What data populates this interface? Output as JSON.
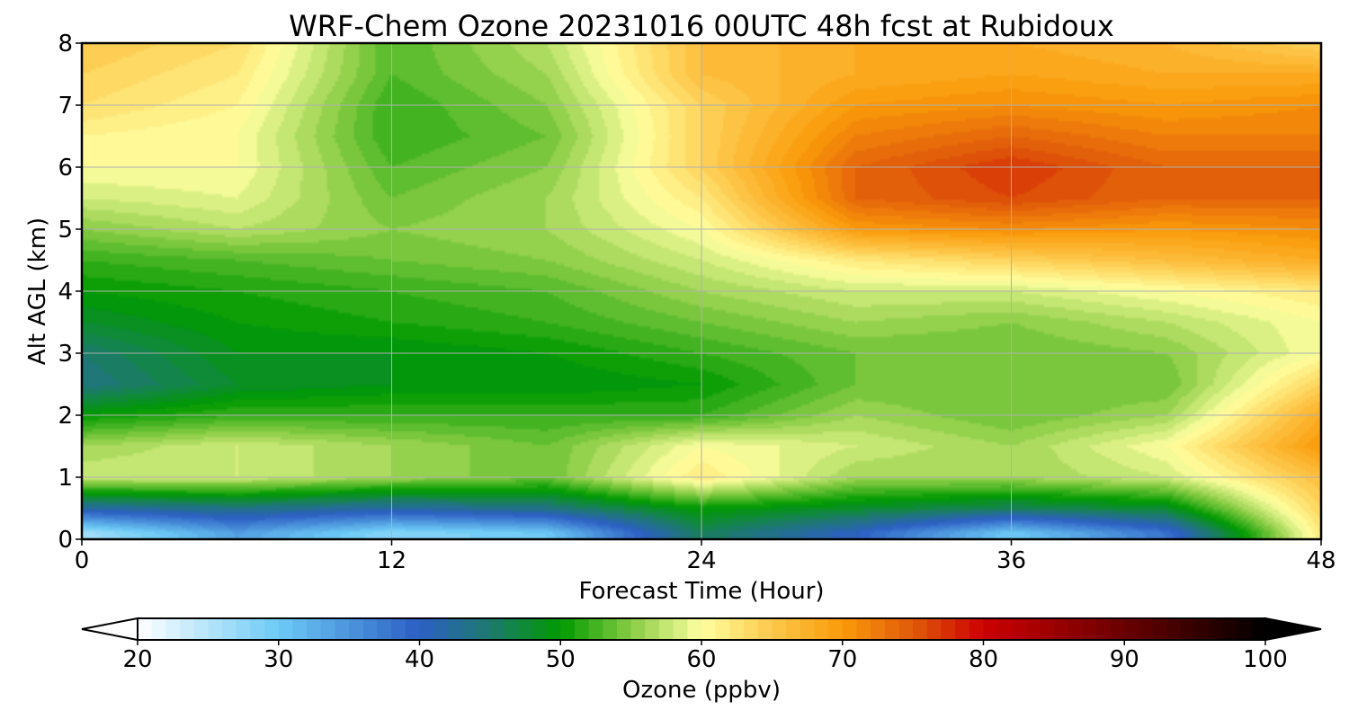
{
  "chart_data": {
    "type": "heatmap",
    "title": "WRF-Chem Ozone  20231016 00UTC 48h fcst at Rubidoux",
    "xlabel": "Forecast Time (Hour)",
    "ylabel": "Alt AGL (km)",
    "xlim": [
      0,
      48
    ],
    "ylim": [
      0,
      8
    ],
    "xticks": [
      0,
      12,
      24,
      36,
      48
    ],
    "yticks": [
      0,
      1,
      2,
      3,
      4,
      5,
      6,
      7,
      8
    ],
    "grid": true,
    "x": [
      0,
      6,
      12,
      18,
      24,
      30,
      36,
      42,
      48
    ],
    "y": [
      0.1,
      0.5,
      1.0,
      1.5,
      2.0,
      2.5,
      3.0,
      3.5,
      4.0,
      4.5,
      5.0,
      5.5,
      6.0,
      6.5,
      7.0,
      7.5,
      8.0
    ],
    "z": [
      [
        26,
        34,
        28,
        30,
        46,
        40,
        30,
        38,
        62
      ],
      [
        42,
        44,
        42,
        44,
        50,
        48,
        46,
        48,
        64
      ],
      [
        58,
        58,
        56,
        54,
        62,
        56,
        56,
        58,
        66
      ],
      [
        56,
        58,
        56,
        54,
        60,
        58,
        56,
        60,
        70
      ],
      [
        50,
        52,
        52,
        52,
        52,
        56,
        54,
        56,
        68
      ],
      [
        44,
        48,
        49,
        49,
        50,
        54,
        54,
        54,
        64
      ],
      [
        45,
        49,
        49,
        50,
        52,
        54,
        54,
        55,
        60
      ],
      [
        48,
        50,
        51,
        52,
        54,
        56,
        55,
        57,
        60
      ],
      [
        50,
        51,
        52,
        53,
        56,
        58,
        58,
        60,
        62
      ],
      [
        52,
        53,
        54,
        55,
        58,
        62,
        64,
        66,
        68
      ],
      [
        55,
        57,
        55,
        56,
        60,
        70,
        71,
        70,
        71
      ],
      [
        58,
        59,
        54,
        56,
        62,
        74,
        76,
        74,
        74
      ],
      [
        60,
        60,
        53,
        55,
        64,
        74,
        77,
        74,
        74
      ],
      [
        61,
        60,
        52,
        54,
        64,
        72,
        74,
        72,
        72
      ],
      [
        63,
        61,
        52,
        55,
        64,
        70,
        71,
        70,
        71
      ],
      [
        64,
        62,
        53,
        56,
        66,
        68,
        69,
        68,
        68
      ],
      [
        65,
        63,
        53,
        57,
        66,
        68,
        68,
        67,
        64
      ]
    ],
    "colorbar": {
      "label": "Ozone  (ppbv)",
      "min": 20,
      "max": 100,
      "step": 1,
      "ticks": [
        20,
        30,
        40,
        50,
        60,
        70,
        80,
        90,
        100
      ],
      "extend": "both",
      "colors": [
        [
          20,
          "#ffffff"
        ],
        [
          30,
          "#6ccaf5"
        ],
        [
          40,
          "#2c5fc4"
        ],
        [
          45,
          "#1d7a6e"
        ],
        [
          50,
          "#009a00"
        ],
        [
          55,
          "#88cc44"
        ],
        [
          60,
          "#ffffa0"
        ],
        [
          65,
          "#fdc84a"
        ],
        [
          70,
          "#fa9a0a"
        ],
        [
          75,
          "#e05a0a"
        ],
        [
          80,
          "#cc0000"
        ],
        [
          90,
          "#6a0000"
        ],
        [
          100,
          "#000000"
        ]
      ]
    }
  }
}
